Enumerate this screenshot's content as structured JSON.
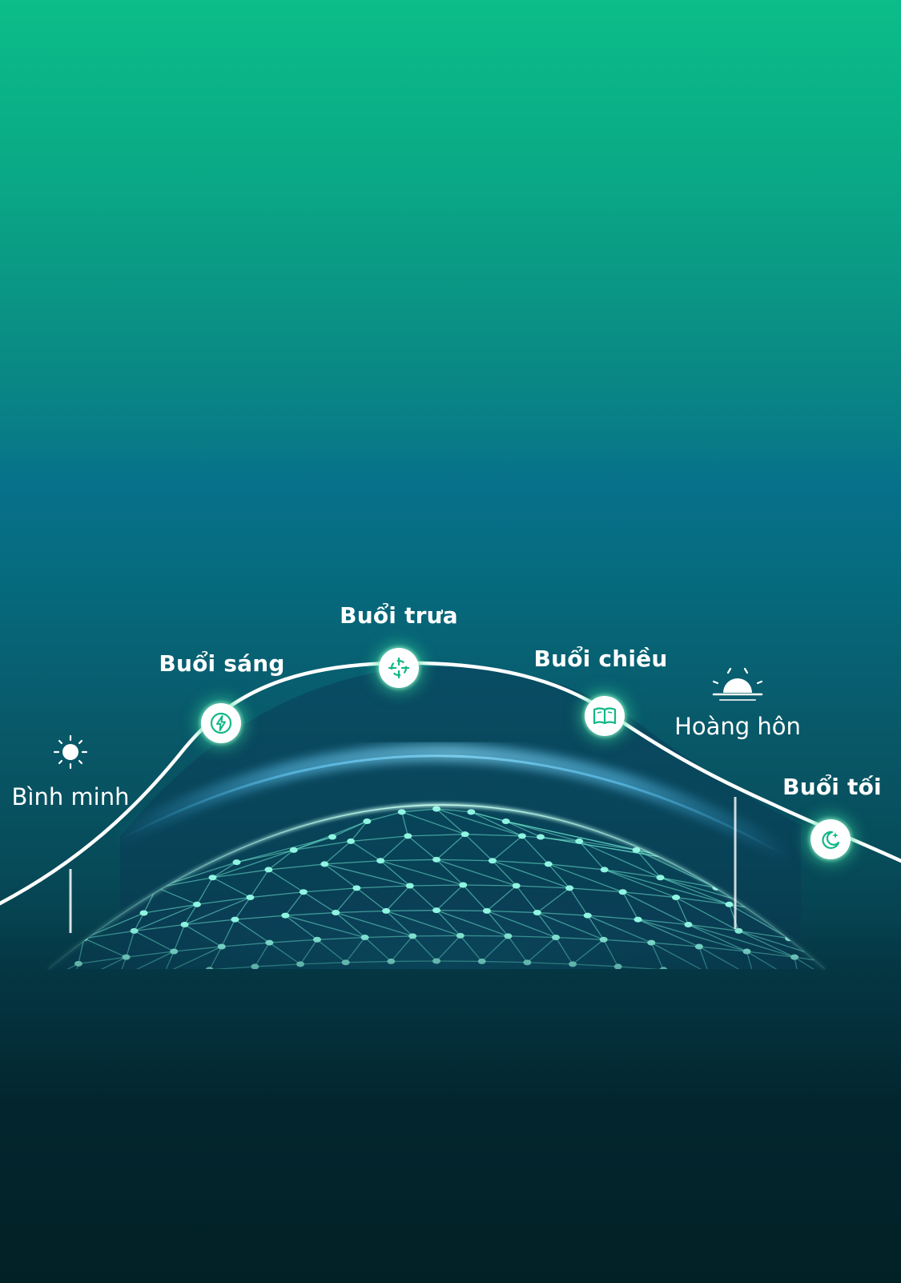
{
  "timeline": {
    "sunrise_label": "Bình minh",
    "sunset_label": "Hoàng hôn",
    "phases": [
      {
        "label": "Buổi sáng",
        "icon": "lightning-icon"
      },
      {
        "label": "Buổi trưa",
        "icon": "target-icon"
      },
      {
        "label": "Buổi chiều",
        "icon": "book-icon"
      },
      {
        "label": "Buổi tối",
        "icon": "moon-icon"
      }
    ]
  },
  "colors": {
    "top": "#0bbd88",
    "bottom": "#022126",
    "accent": "#12b886",
    "curve": "#ffffff"
  }
}
